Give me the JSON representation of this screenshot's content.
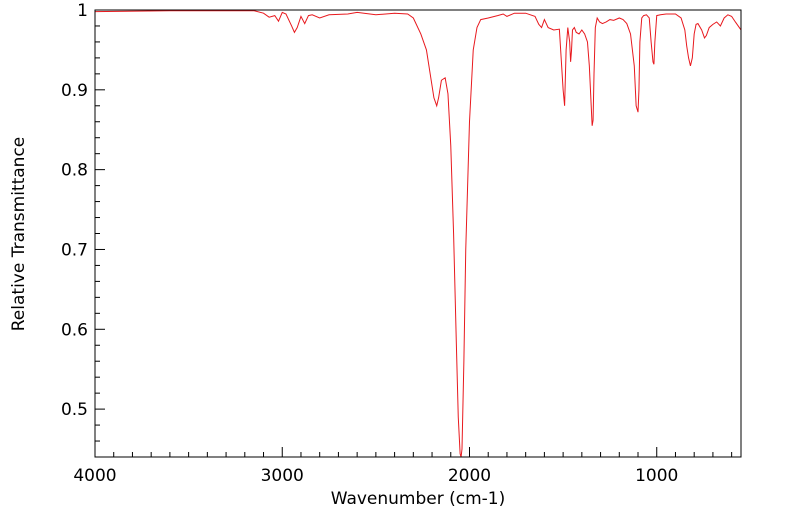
{
  "chart_data": {
    "type": "line",
    "title": "",
    "xlabel": "Wavenumber (cm-1)",
    "ylabel": "Relative Transmittance",
    "xlim": [
      4000,
      550
    ],
    "ylim": [
      0.44,
      1.0
    ],
    "x_ticks": [
      4000,
      3000,
      2000,
      1000
    ],
    "x_tick_labels": [
      "4000",
      "3000",
      "2000",
      "1000"
    ],
    "y_ticks": [
      0.5,
      0.6,
      0.7,
      0.8,
      0.9,
      1.0
    ],
    "y_tick_labels": [
      "0.5",
      "0.6",
      "0.7",
      "0.8",
      "0.9",
      "1"
    ],
    "grid": false,
    "series": [
      {
        "color": "#e8191e",
        "x": [
          4000,
          3600,
          3150,
          3100,
          3070,
          3040,
          3020,
          3000,
          2980,
          2950,
          2935,
          2920,
          2900,
          2880,
          2860,
          2840,
          2800,
          2750,
          2650,
          2600,
          2500,
          2400,
          2330,
          2300,
          2260,
          2230,
          2210,
          2190,
          2175,
          2165,
          2150,
          2130,
          2115,
          2100,
          2085,
          2070,
          2060,
          2050,
          2045,
          2040,
          2030,
          2020,
          2000,
          1980,
          1960,
          1940,
          1900,
          1850,
          1820,
          1800,
          1760,
          1700,
          1650,
          1630,
          1615,
          1600,
          1580,
          1550,
          1520,
          1500,
          1492,
          1484,
          1475,
          1465,
          1460,
          1455,
          1450,
          1440,
          1430,
          1415,
          1400,
          1385,
          1370,
          1360,
          1350,
          1345,
          1340,
          1335,
          1328,
          1318,
          1305,
          1290,
          1270,
          1250,
          1230,
          1200,
          1180,
          1160,
          1140,
          1120,
          1110,
          1100,
          1095,
          1090,
          1080,
          1070,
          1055,
          1040,
          1030,
          1020,
          1015,
          1010,
          1000,
          980,
          950,
          900,
          870,
          850,
          840,
          830,
          820,
          810,
          800,
          790,
          780,
          760,
          745,
          735,
          720,
          700,
          680,
          660,
          640,
          620,
          600,
          580,
          565,
          550
        ],
        "values": [
          0.998,
          0.999,
          0.999,
          0.996,
          0.991,
          0.993,
          0.986,
          0.997,
          0.995,
          0.98,
          0.972,
          0.978,
          0.992,
          0.983,
          0.993,
          0.994,
          0.99,
          0.994,
          0.995,
          0.997,
          0.994,
          0.996,
          0.995,
          0.99,
          0.97,
          0.95,
          0.92,
          0.89,
          0.88,
          0.89,
          0.912,
          0.915,
          0.895,
          0.83,
          0.72,
          0.58,
          0.49,
          0.444,
          0.44,
          0.45,
          0.56,
          0.7,
          0.86,
          0.95,
          0.978,
          0.988,
          0.99,
          0.993,
          0.995,
          0.992,
          0.996,
          0.996,
          0.992,
          0.982,
          0.978,
          0.988,
          0.978,
          0.975,
          0.976,
          0.9,
          0.88,
          0.95,
          0.978,
          0.96,
          0.935,
          0.95,
          0.975,
          0.978,
          0.972,
          0.97,
          0.975,
          0.97,
          0.96,
          0.93,
          0.88,
          0.855,
          0.862,
          0.92,
          0.978,
          0.99,
          0.985,
          0.983,
          0.985,
          0.988,
          0.987,
          0.99,
          0.988,
          0.983,
          0.97,
          0.93,
          0.88,
          0.872,
          0.9,
          0.96,
          0.99,
          0.993,
          0.994,
          0.99,
          0.96,
          0.935,
          0.932,
          0.96,
          0.993,
          0.994,
          0.995,
          0.995,
          0.99,
          0.975,
          0.955,
          0.94,
          0.93,
          0.94,
          0.97,
          0.982,
          0.983,
          0.975,
          0.965,
          0.968,
          0.978,
          0.982,
          0.985,
          0.98,
          0.99,
          0.994,
          0.992,
          0.985,
          0.98,
          0.975
        ]
      }
    ]
  }
}
